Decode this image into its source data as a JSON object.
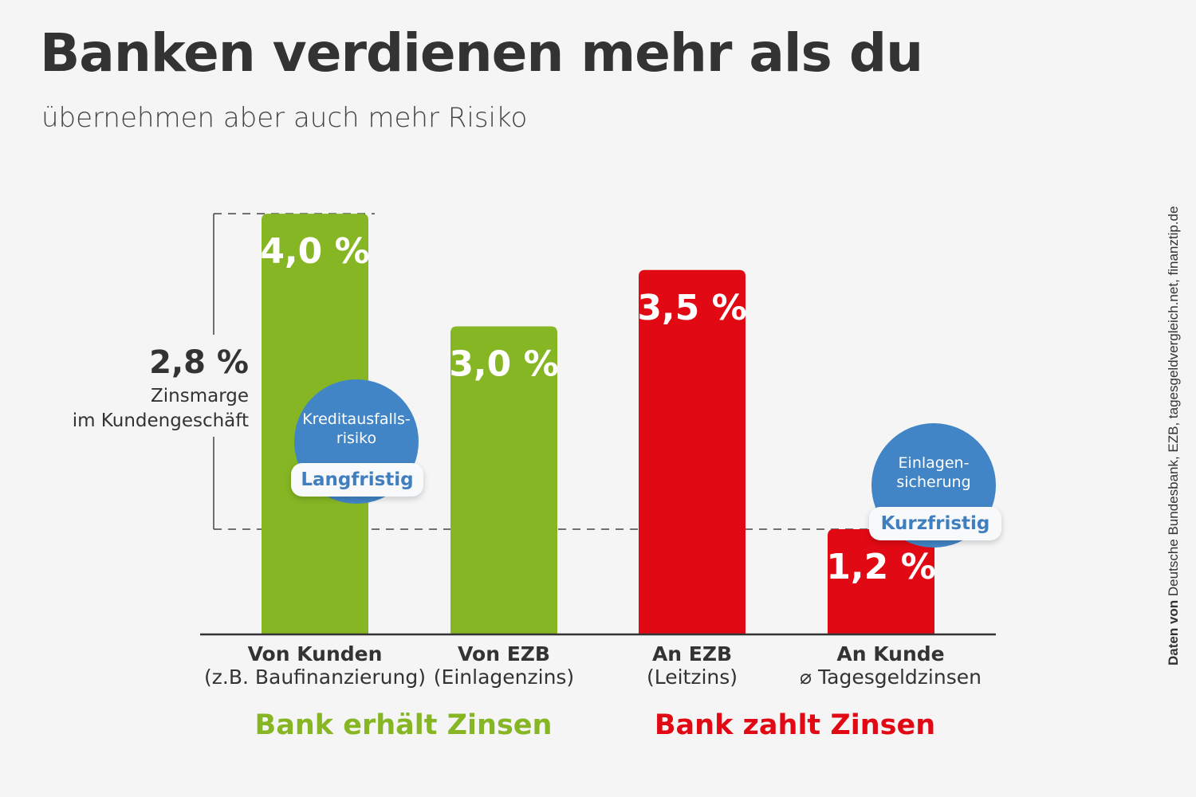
{
  "title": "Banken verdienen mehr als du",
  "subtitle": "übernehmen aber auch mehr Risiko",
  "source": {
    "bold": "Daten von",
    "text": " Deutsche Bundesbank, EZB, tagesgeldvergleich.net, finanztip.de"
  },
  "colors": {
    "receive": "#86b624",
    "pay": "#e10a14",
    "bubble": "#4285c6"
  },
  "chart_data": {
    "type": "bar",
    "title": "Banken verdienen mehr als du",
    "subtitle": "übernehmen aber auch mehr Risiko",
    "unit": "%",
    "categories": [
      {
        "main": "Von Kunden",
        "sub": "(z.B. Baufinanzierung)"
      },
      {
        "main": "Von EZB",
        "sub": "(Einlagenzins)"
      },
      {
        "main": "An EZB",
        "sub": "(Leitzins)"
      },
      {
        "main": "An Kunde",
        "sub": "⌀ Tagesgeldzinsen"
      }
    ],
    "values": [
      4.0,
      3.0,
      3.5,
      1.2
    ],
    "value_labels": [
      "4,0 %",
      "3,0 %",
      "3,5 %",
      "1,2 %"
    ],
    "bar_colors": [
      "#86b624",
      "#86b624",
      "#e10a14",
      "#e10a14"
    ],
    "groups": [
      {
        "label": "Bank erhält Zinsen",
        "color": "#86b624"
      },
      {
        "label": "Bank zahlt Zinsen",
        "color": "#e10a14"
      }
    ],
    "annotation_margin": {
      "value": "2,8 %",
      "label_line1": "Zinsmarge",
      "label_line2": "im Kundengeschäft"
    },
    "bubbles": [
      {
        "text1": "Kreditausfalls-",
        "text2": "risiko",
        "tag": "Langfristig"
      },
      {
        "text1": "Einlagen-",
        "text2": "sicherung",
        "tag": "Kurzfristig"
      }
    ],
    "grid": false
  }
}
